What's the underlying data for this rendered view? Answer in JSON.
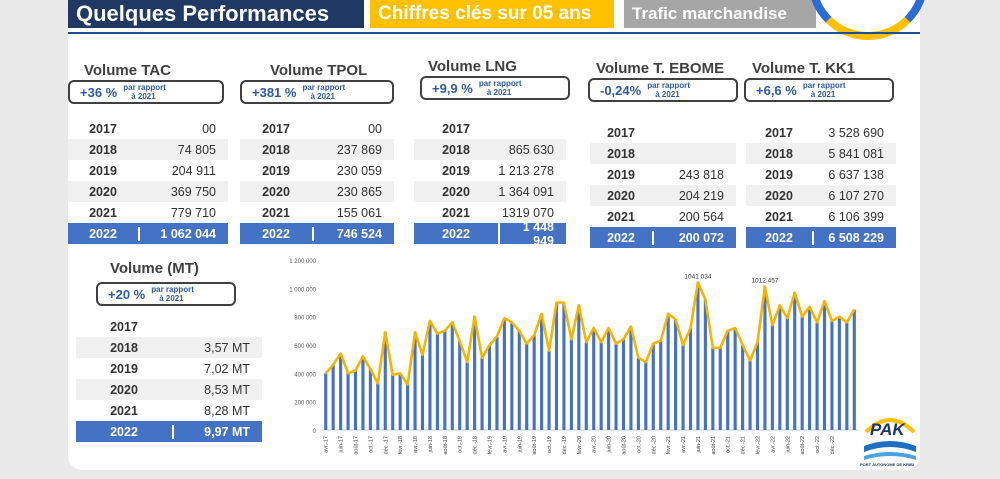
{
  "header": {
    "title": "Quelques Performances",
    "subtitle": "Chiffres clés sur 05 ans",
    "section": "Trafic marchandise"
  },
  "blocks": [
    {
      "id": "tac",
      "title": "Volume TAC",
      "pct": "+36 %",
      "cmp1": "par rapport",
      "cmp2": "à 2021",
      "rows": [
        [
          "2017",
          "00"
        ],
        [
          "2018",
          "74 805"
        ],
        [
          "2019",
          "204 911"
        ],
        [
          "2020",
          "369 750"
        ],
        [
          "2021",
          "779 710"
        ],
        [
          "2022",
          "1 062 044"
        ]
      ]
    },
    {
      "id": "tpol",
      "title": "Volume TPOL",
      "pct": "+381 %",
      "cmp1": "par rapport",
      "cmp2": "à 2021",
      "rows": [
        [
          "2017",
          "00"
        ],
        [
          "2018",
          "237 869"
        ],
        [
          "2019",
          "230 059"
        ],
        [
          "2020",
          "230 865"
        ],
        [
          "2021",
          "155 061"
        ],
        [
          "2022",
          "746 524"
        ]
      ]
    },
    {
      "id": "lng",
      "title": "Volume LNG",
      "pct": "+9,9 %",
      "cmp1": "par rapport",
      "cmp2": "à 2021",
      "rows": [
        [
          "2017",
          ""
        ],
        [
          "2018",
          "865 630"
        ],
        [
          "2019",
          "1 213 278"
        ],
        [
          "2020",
          "1 364 091"
        ],
        [
          "2021",
          "1319 070"
        ],
        [
          "2022",
          "1 448 949"
        ]
      ]
    },
    {
      "id": "ebome",
      "title": "Volume T. EBOME",
      "pct": "-0,24%",
      "cmp1": "par rapport",
      "cmp2": "à 2021",
      "rows": [
        [
          "2017",
          ""
        ],
        [
          "2018",
          ""
        ],
        [
          "2019",
          "243 818"
        ],
        [
          "2020",
          "204 219"
        ],
        [
          "2021",
          "200 564"
        ],
        [
          "2022",
          "200 072"
        ]
      ]
    },
    {
      "id": "kk1",
      "title": "Volume T. KK1",
      "pct": "+6,6 %",
      "cmp1": "par rapport",
      "cmp2": "à 2021",
      "rows": [
        [
          "2017",
          "3 528 690"
        ],
        [
          "2018",
          "5 841 081"
        ],
        [
          "2019",
          "6 637 138"
        ],
        [
          "2020",
          "6 107 270"
        ],
        [
          "2021",
          "6 106 399"
        ],
        [
          "2022",
          "6 508 229"
        ]
      ]
    },
    {
      "id": "mt",
      "title": "Volume  (MT)",
      "pct": "+20 %",
      "cmp1": "par rapport",
      "cmp2": "à 2021",
      "rows": [
        [
          "2017",
          ""
        ],
        [
          "2018",
          "3,57 MT"
        ],
        [
          "2019",
          "7,02 MT"
        ],
        [
          "2020",
          "8,53 MT"
        ],
        [
          "2021",
          "8,28 MT"
        ],
        [
          "2022",
          "9,97 MT"
        ]
      ]
    }
  ],
  "logo_text": "PAK",
  "logo_caption": "PORT AUTONOME DE KRIBI",
  "colors": {
    "navy": "#1f3864",
    "gold": "#ffc000",
    "grey": "#a6a6a6",
    "accent": "#4472c4",
    "line": "#f5b400"
  },
  "chart_data": {
    "type": "bar",
    "overlay": "line",
    "ylim": [
      0,
      1200000
    ],
    "yticks": [
      "0",
      "200 000",
      "400 000",
      "600 000",
      "800 000",
      "1 000 000",
      "1 200 000"
    ],
    "xticklabels": [
      "avr.-17",
      "juin-17",
      "août-17",
      "oct.-17",
      "déc.-17",
      "févr.-18",
      "avr.-18",
      "juin-18",
      "août-18",
      "oct.-18",
      "déc.-18",
      "févr.-19",
      "avr.-19",
      "juin-19",
      "août-19",
      "oct.-19",
      "déc.-19",
      "févr.-20",
      "avr.-20",
      "juin-20",
      "août-20",
      "oct.-20",
      "déc.-20",
      "févr.-21",
      "avr.-21",
      "juin-21",
      "août-21",
      "oct.-21",
      "déc.-21",
      "févr.-22",
      "avr.-22",
      "juin-22",
      "août-22",
      "oct.-22",
      "déc.-22"
    ],
    "values": [
      400000,
      460000,
      540000,
      400000,
      420000,
      520000,
      430000,
      330000,
      690000,
      390000,
      400000,
      320000,
      690000,
      530000,
      770000,
      680000,
      700000,
      760000,
      630000,
      480000,
      800000,
      510000,
      600000,
      660000,
      790000,
      760000,
      700000,
      610000,
      670000,
      820000,
      560000,
      900000,
      900000,
      640000,
      880000,
      620000,
      720000,
      620000,
      720000,
      610000,
      640000,
      730000,
      510000,
      480000,
      610000,
      630000,
      820000,
      780000,
      600000,
      720000,
      1041034,
      920000,
      580000,
      580000,
      700000,
      720000,
      600000,
      490000,
      620000,
      1012457,
      740000,
      880000,
      790000,
      970000,
      800000,
      870000,
      760000,
      910000,
      770000,
      800000,
      760000,
      850000
    ],
    "annotations": [
      {
        "index": 50,
        "label": "1041 034"
      },
      {
        "index": 59,
        "label": "1012 457"
      }
    ]
  }
}
